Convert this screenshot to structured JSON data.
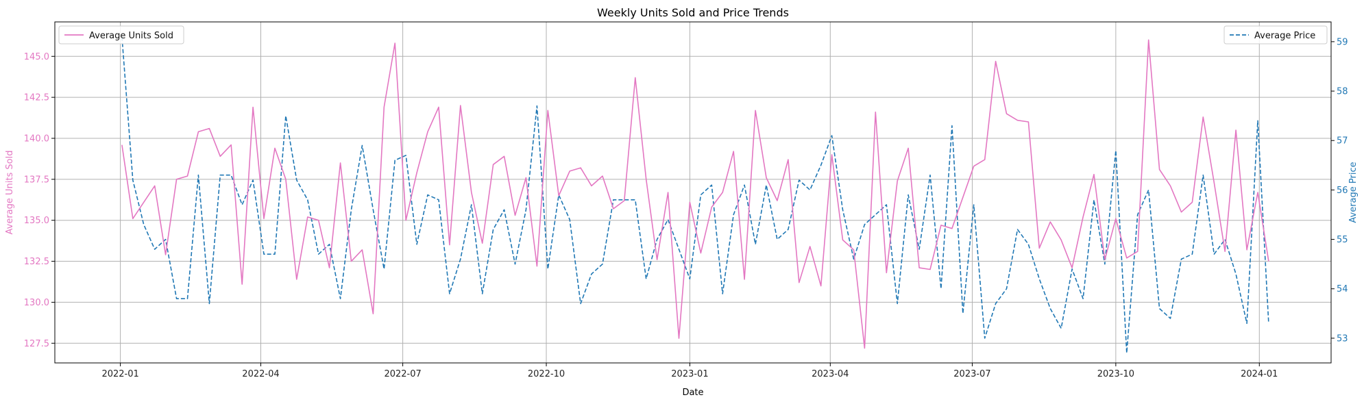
{
  "chart_data": {
    "type": "line",
    "title": "Weekly Units Sold and Price Trends",
    "xlabel": "Date",
    "ylabel_left": "Average Units Sold",
    "ylabel_right": "Average Price",
    "xlim": [
      "2021-11-20",
      "2024-02-16"
    ],
    "ylim_left": [
      126.3,
      147.1
    ],
    "ylim_right": [
      52.5,
      59.4
    ],
    "x_ticks": [
      "2022-01-01",
      "2022-04-01",
      "2022-07-01",
      "2022-10-01",
      "2023-01-01",
      "2023-04-01",
      "2023-07-01",
      "2023-10-01",
      "2024-01-01"
    ],
    "x_tick_labels": [
      "2022-01",
      "2022-04",
      "2022-07",
      "2022-10",
      "2023-01",
      "2023-04",
      "2023-07",
      "2023-10",
      "2024-01"
    ],
    "y_ticks_left": [
      127.5,
      130.0,
      132.5,
      135.0,
      137.5,
      140.0,
      142.5,
      145.0
    ],
    "y_tick_labels_left": [
      "127.5",
      "130.0",
      "132.5",
      "135.0",
      "137.5",
      "140.0",
      "142.5",
      "145.0"
    ],
    "y_ticks_right": [
      53,
      54,
      55,
      56,
      57,
      58,
      59
    ],
    "y_tick_labels_right": [
      "53",
      "54",
      "55",
      "56",
      "57",
      "58",
      "59"
    ],
    "grid": true,
    "legend_left_position": "top-left",
    "legend_right_position": "top-right",
    "x_start": "2022-01-02",
    "x_interval": "weekly",
    "series": [
      {
        "name": "Average Units Sold",
        "axis": "left",
        "color": "#e377c2",
        "style": "solid",
        "values": [
          139.6,
          135.1,
          136.1,
          137.1,
          132.9,
          137.5,
          137.7,
          140.4,
          140.6,
          138.9,
          139.6,
          131.1,
          141.9,
          135.1,
          139.4,
          137.5,
          131.4,
          135.2,
          135.0,
          132.1,
          138.5,
          132.5,
          133.2,
          129.3,
          141.9,
          145.8,
          135.0,
          137.9,
          140.4,
          141.9,
          133.5,
          142.0,
          136.7,
          133.6,
          138.4,
          138.9,
          135.3,
          137.6,
          132.2,
          141.7,
          136.5,
          138.0,
          138.2,
          137.1,
          137.7,
          135.7,
          136.2,
          143.7,
          137.5,
          132.6,
          136.7,
          127.8,
          136.1,
          133.0,
          135.8,
          136.7,
          139.2,
          131.4,
          141.7,
          137.6,
          136.2,
          138.7,
          131.2,
          133.4,
          131.0,
          139.0,
          133.8,
          133.2,
          127.2,
          141.6,
          131.8,
          137.4,
          139.4,
          132.1,
          132.0,
          134.7,
          134.5,
          136.4,
          138.3,
          138.7,
          144.7,
          141.5,
          141.1,
          141.0,
          133.3,
          134.9,
          133.8,
          132.1,
          135.2,
          137.8,
          132.6,
          135.1,
          132.7,
          133.1,
          146.0,
          138.1,
          137.1,
          135.5,
          136.1,
          141.3,
          137.3,
          133.1,
          140.5,
          133.2,
          136.7,
          132.5
        ]
      },
      {
        "name": "Average Price",
        "axis": "right",
        "color": "#1f77b4",
        "style": "dashed",
        "values": [
          59.1,
          56.2,
          55.3,
          54.8,
          55.0,
          53.8,
          53.8,
          56.3,
          53.7,
          56.3,
          56.3,
          55.7,
          56.2,
          54.7,
          54.7,
          57.5,
          56.2,
          55.8,
          54.7,
          54.9,
          53.8,
          55.6,
          56.9,
          55.6,
          54.4,
          56.6,
          56.7,
          54.9,
          55.9,
          55.8,
          53.9,
          54.6,
          55.7,
          53.9,
          55.2,
          55.6,
          54.5,
          55.6,
          57.7,
          54.4,
          55.9,
          55.4,
          53.7,
          54.3,
          54.5,
          55.8,
          55.8,
          55.8,
          54.2,
          55.0,
          55.4,
          54.8,
          54.2,
          55.9,
          56.1,
          53.9,
          55.5,
          56.1,
          54.9,
          56.1,
          55.0,
          55.2,
          56.2,
          56.0,
          56.5,
          57.1,
          55.6,
          54.6,
          55.3,
          55.5,
          55.7,
          53.7,
          55.9,
          54.8,
          56.3,
          54.0,
          57.3,
          53.5,
          55.7,
          53.0,
          53.7,
          54.0,
          55.2,
          54.9,
          54.2,
          53.6,
          53.2,
          54.4,
          53.8,
          55.8,
          54.5,
          56.8,
          52.7,
          55.5,
          56.0,
          53.6,
          53.4,
          54.6,
          54.7,
          56.3,
          54.7,
          55.0,
          54.3,
          53.3,
          57.4,
          53.3
        ]
      }
    ]
  }
}
